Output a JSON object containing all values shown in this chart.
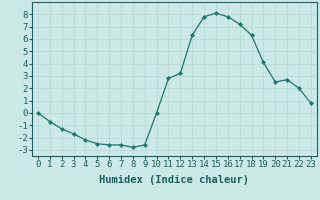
{
  "x": [
    0,
    1,
    2,
    3,
    4,
    5,
    6,
    7,
    8,
    9,
    10,
    11,
    12,
    13,
    14,
    15,
    16,
    17,
    18,
    19,
    20,
    21,
    22,
    23
  ],
  "y": [
    0,
    -0.7,
    -1.3,
    -1.7,
    -2.2,
    -2.5,
    -2.6,
    -2.6,
    -2.8,
    -2.6,
    0.0,
    2.8,
    3.2,
    6.3,
    7.8,
    8.1,
    7.8,
    7.2,
    6.3,
    4.1,
    2.5,
    2.7,
    2.0,
    0.8
  ],
  "line_color": "#1a7a6e",
  "marker": "D",
  "marker_size": 2.0,
  "bg_color": "#cce8e8",
  "grid_color": "#b8d8d8",
  "xlabel": "Humidex (Indice chaleur)",
  "xlim": [
    -0.5,
    23.5
  ],
  "ylim": [
    -3.5,
    9.0
  ],
  "yticks": [
    -3,
    -2,
    -1,
    0,
    1,
    2,
    3,
    4,
    5,
    6,
    7,
    8
  ],
  "xticks": [
    0,
    1,
    2,
    3,
    4,
    5,
    6,
    7,
    8,
    9,
    10,
    11,
    12,
    13,
    14,
    15,
    16,
    17,
    18,
    19,
    20,
    21,
    22,
    23
  ],
  "xlabel_fontsize": 7.5,
  "tick_fontsize": 6.5,
  "tick_color": "#1a6060",
  "spine_color": "#1a6060",
  "label_color": "#1a6060"
}
